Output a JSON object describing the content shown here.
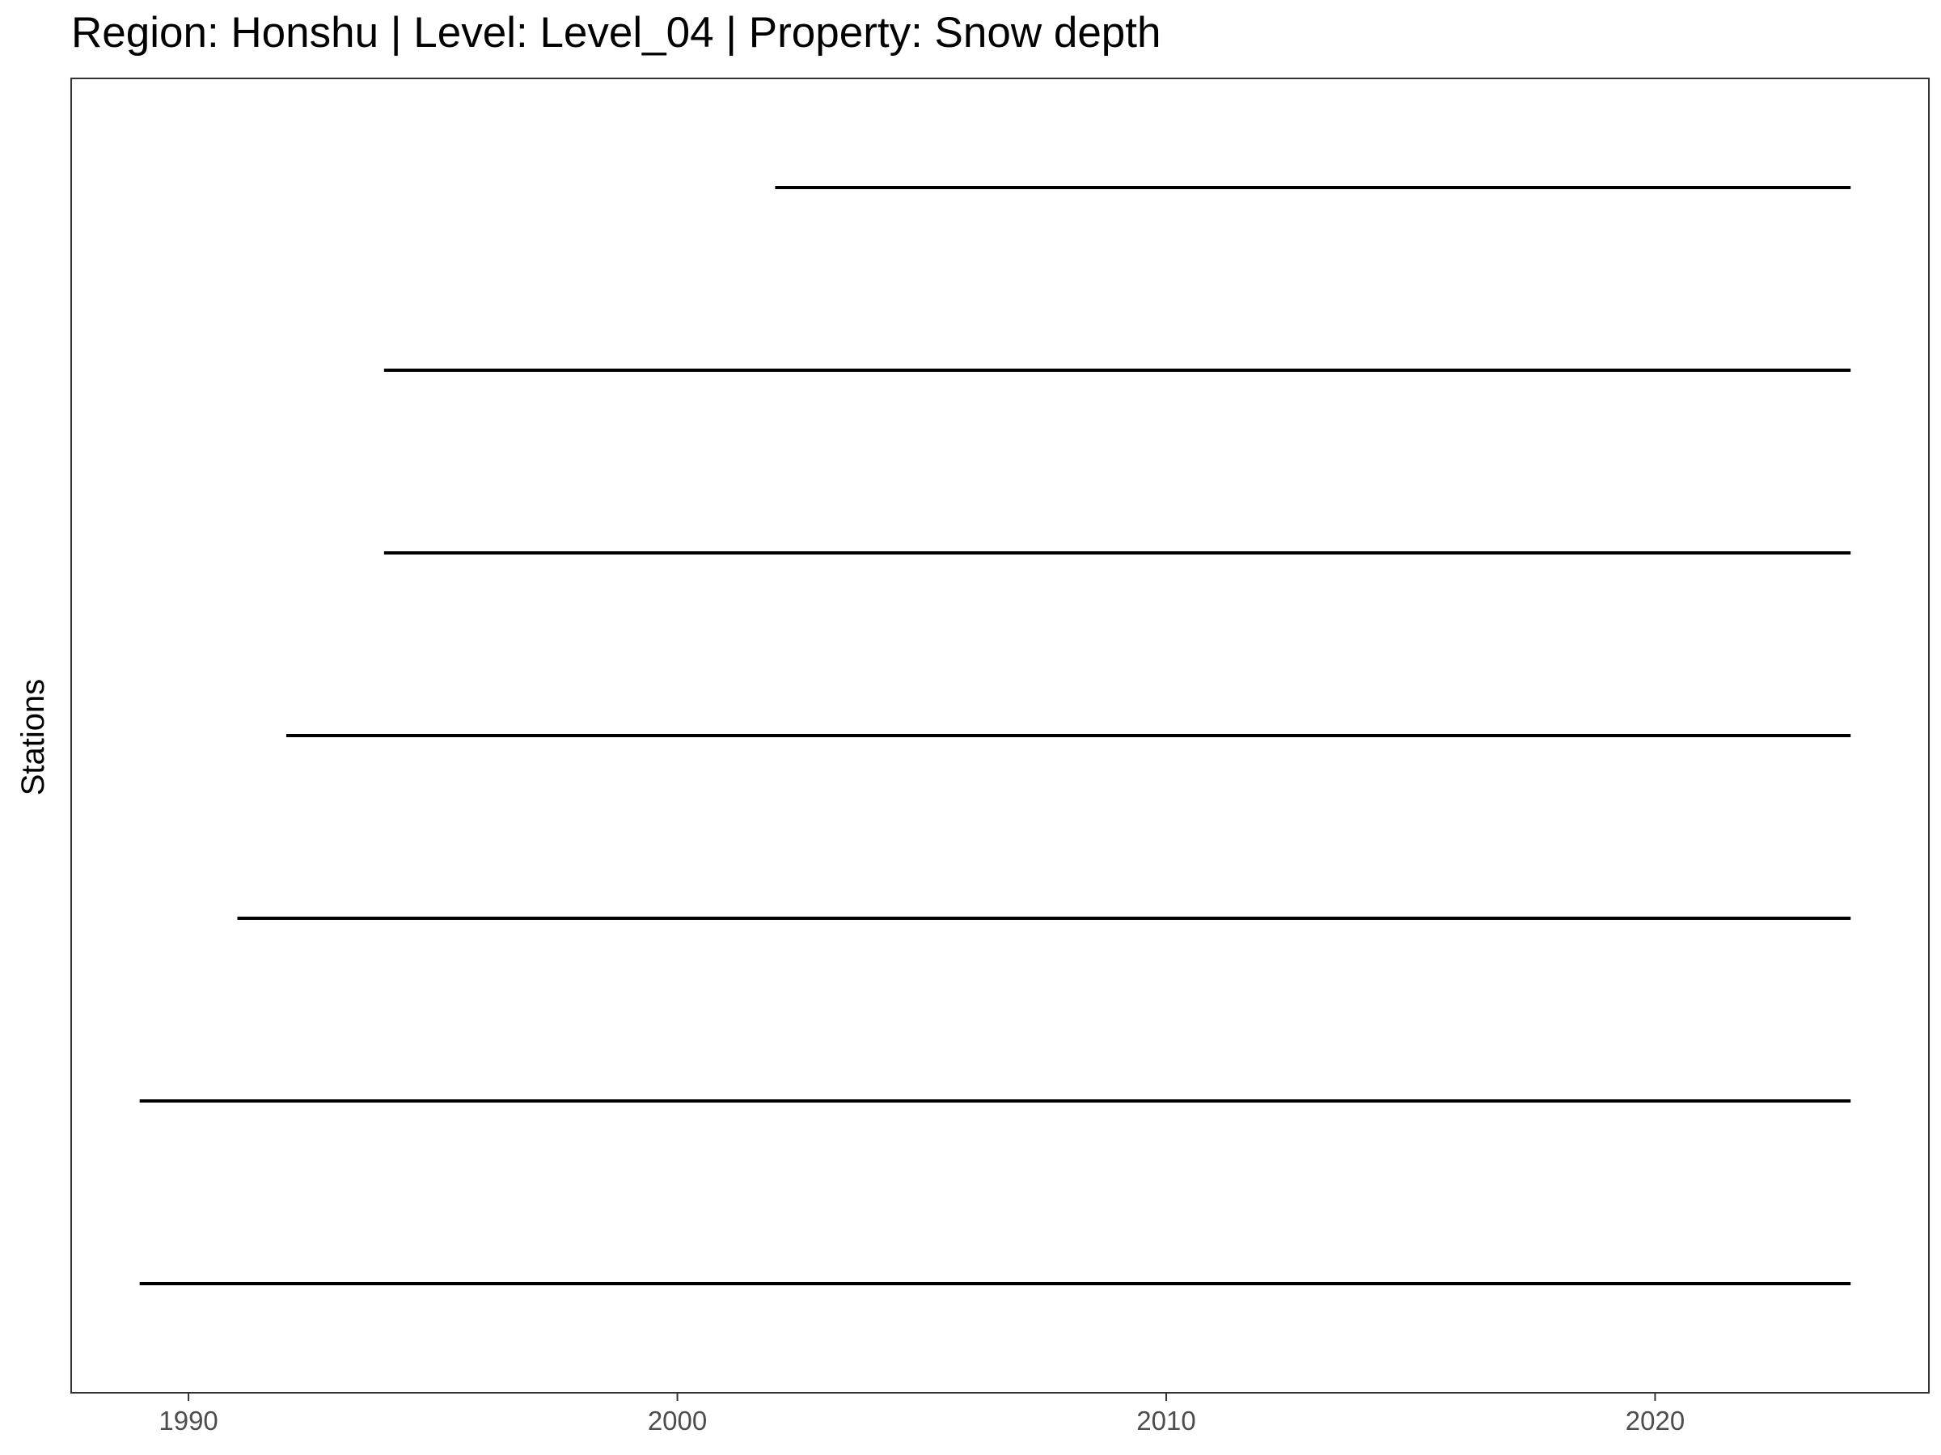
{
  "chart_data": {
    "type": "timeline",
    "title": "Region: Honshu | Level: Level_04 | Property: Snow depth",
    "xlabel": "",
    "ylabel": "Stations",
    "xlim": [
      1987.6,
      2025.6
    ],
    "x_ticks": [
      1990,
      2000,
      2010,
      2020
    ],
    "x_tick_labels": [
      "1990",
      "2000",
      "2010",
      "2020"
    ],
    "grid": false,
    "legend": "none",
    "line_color": "#000000",
    "segments": [
      {
        "start": 1989.0,
        "end": 2024.0
      },
      {
        "start": 1989.0,
        "end": 2024.0
      },
      {
        "start": 1991.0,
        "end": 2024.0
      },
      {
        "start": 1992.0,
        "end": 2024.0
      },
      {
        "start": 1994.0,
        "end": 2024.0
      },
      {
        "start": 1994.0,
        "end": 2024.0
      },
      {
        "start": 2002.0,
        "end": 2024.0
      }
    ]
  }
}
